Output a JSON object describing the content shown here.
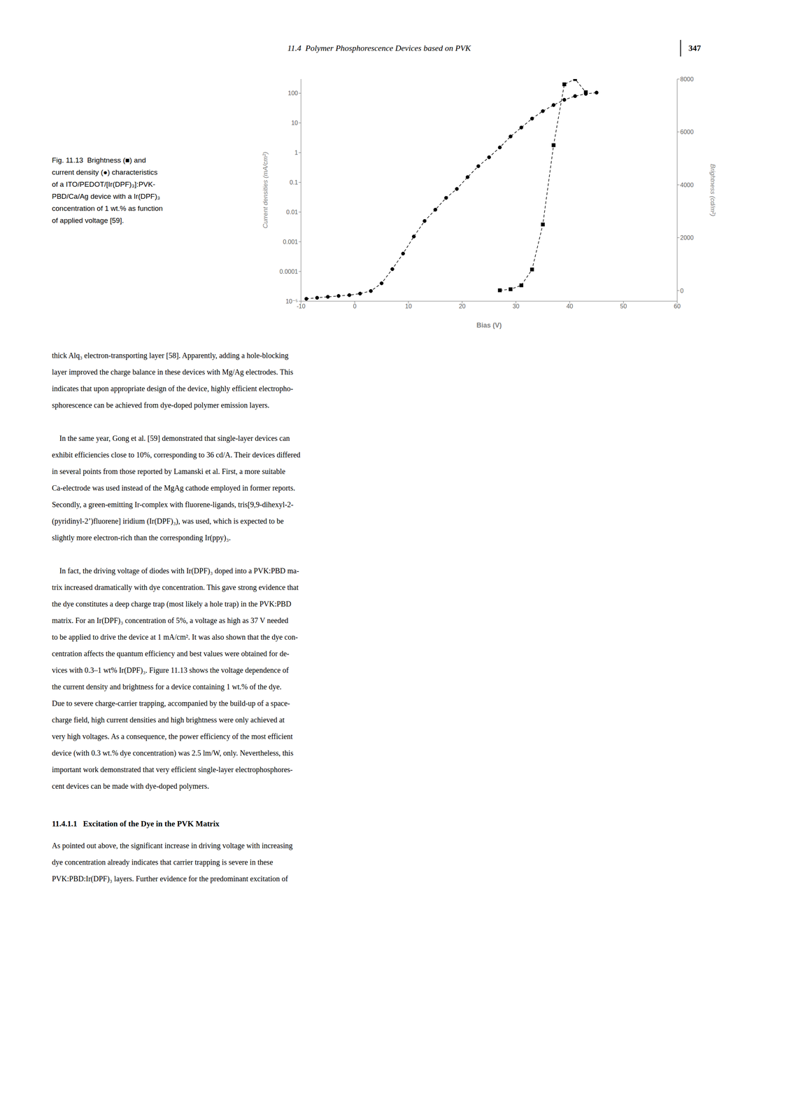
{
  "header_text": "11.4  Polymer Phosphorescence Devices based on PVK",
  "page_number": "347",
  "caption": [
    "Fig. 11.13  Brightness (■) and",
    "current density (●) characteristics",
    "of a ITO/PEDOT/[Ir(DPF)₃]:PVK-",
    "PBD/Ca/Ag device with a Ir(DPF)₃",
    "concentration of 1 wt.% as function",
    "of applied voltage [59]."
  ],
  "chart_data": {
    "type": "line",
    "xlabel": "Bias (V)",
    "ylabel": "Current densities (mA/cm²)",
    "y2label": "Brightness (cd/m²)",
    "log": "y",
    "grid": false,
    "xlim": [
      -10,
      60
    ],
    "xticks": [
      -10,
      0,
      10,
      20,
      30,
      40,
      50,
      60
    ],
    "ylim": [
      1e-05,
      300
    ],
    "yticks": [
      {
        "value": 1e-05,
        "label": "10⁻⁵"
      },
      0.0001,
      0.001,
      0.01,
      0.1,
      1,
      10,
      100
    ],
    "y2lim": [
      -400,
      8000
    ],
    "y2ticks": [
      0,
      2000,
      4000,
      6000,
      8000
    ],
    "series": [
      {
        "x": [
          -9,
          -7,
          -5,
          -3,
          -1,
          1,
          3,
          5,
          7,
          9,
          11,
          13,
          15,
          17,
          19,
          21,
          23,
          25,
          27,
          29,
          31,
          33,
          35,
          37,
          39,
          41,
          43,
          45
        ],
        "values": [
          1.2e-05,
          1.3e-05,
          1.4e-05,
          1.5e-05,
          1.6e-05,
          1.8e-05,
          2.2e-05,
          4e-05,
          0.00012,
          0.0004,
          0.0015,
          0.005,
          0.012,
          0.03,
          0.06,
          0.15,
          0.35,
          0.7,
          1.5,
          3.5,
          7.0,
          14.0,
          25.0,
          40.0,
          60.0,
          80.0,
          95.0,
          105.0
        ],
        "color": "black",
        "marker": "circle",
        "line_style": "dashed"
      },
      {
        "x": [
          27,
          29,
          31,
          33,
          35,
          37,
          39,
          41,
          43
        ],
        "values": [
          10,
          50,
          200,
          800,
          2500,
          5500,
          7800,
          8000,
          7500
        ],
        "color": "black",
        "marker": "square",
        "line_style": "dashed",
        "axis": "y2"
      }
    ]
  },
  "body_text": [
    [
      "thick Alq₃ electron-transporting layer [58]. Apparently, adding a hole-blocking",
      "layer improved the charge balance in these devices with Mg/Ag electrodes. This",
      "indicates that upon appropriate design of the device, highly efficient electropho-",
      "sphorescence can be achieved from dye-doped polymer emission layers."
    ],
    [
      "    In the same year, Gong et al. [59] demonstrated that single-layer devices can",
      "exhibit efficiencies close to 10%, corresponding to 36 cd/A. Their devices differed",
      "in several points from those reported by Lamanski et al. First, a more suitable",
      "Ca-electrode was used instead of the MgAg cathode employed in former reports.",
      "Secondly, a green-emitting Ir-complex with fluorene-ligands, tris[9,9-dihexyl-2-",
      "(pyridinyl-2’)fluorene] iridium (Ir(DPF)₃), was used, which is expected to be",
      "slightly more electron-rich than the corresponding Ir(ppy)₃."
    ],
    [
      "    In fact, the driving voltage of diodes with Ir(DPF)₃ doped into a PVK:PBD ma-",
      "trix increased dramatically with dye concentration. This gave strong evidence that",
      "the dye constitutes a deep charge trap (most likely a hole trap) in the PVK:PBD",
      "matrix. For an Ir(DPF)₃ concentration of 5%, a voltage as high as 37 V needed",
      "to be applied to drive the device at 1 mA/cm². It was also shown that the dye con-",
      "centration affects the quantum efficiency and best values were obtained for de-",
      "vices with 0.3–1 wt% Ir(DPF)₃. Figure 11.13 shows the voltage dependence of",
      "the current density and brightness for a device containing 1 wt.% of the dye.",
      "Due to severe charge-carrier trapping, accompanied by the build-up of a space-",
      "charge field, high current densities and high brightness were only achieved at",
      "very high voltages. As a consequence, the power efficiency of the most efficient",
      "device (with 0.3 wt.% dye concentration) was 2.5 lm/W, only. Nevertheless, this",
      "important work demonstrated that very efficient single-layer electrophosphores-",
      "cent devices can be made with dye-doped polymers."
    ]
  ],
  "section_header": "11.4.1.1   Excitation of the Dye in the PVK Matrix",
  "section_body": [
    "As pointed out above, the significant increase in driving voltage with increasing",
    "dye concentration already indicates that carrier trapping is severe in these",
    "PVK:PBD:Ir(DPF)₃ layers. Further evidence for the predominant excitation of"
  ]
}
